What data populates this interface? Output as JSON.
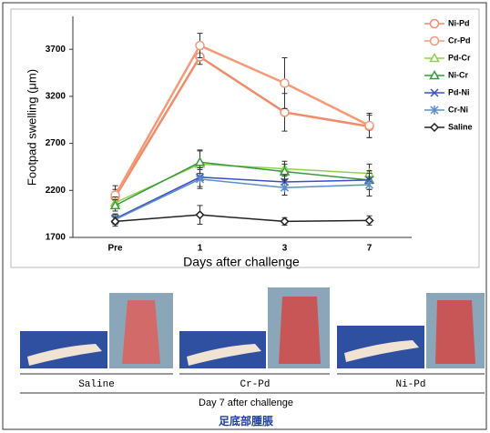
{
  "chart_data": {
    "type": "line",
    "ylabel": "Footpad swelling (μm)",
    "xlabel": "Days after challenge",
    "categories": [
      "Pre",
      "1",
      "3",
      "7"
    ],
    "ylim": [
      1700,
      4050
    ],
    "yticks": [
      1700,
      2200,
      2700,
      3200,
      3700
    ],
    "legend": "upper right",
    "series": [
      {
        "name": "Ni-Pd",
        "color": "#f08c6a",
        "marker": "circle",
        "values": [
          2130,
          3620,
          3030,
          2880
        ],
        "errors": [
          80,
          80,
          200,
          120
        ]
      },
      {
        "name": "Cr-Pd",
        "color": "#f59a78",
        "marker": "circle",
        "values": [
          2150,
          3740,
          3340,
          2890
        ],
        "errors": [
          100,
          130,
          270,
          130
        ]
      },
      {
        "name": "Pd-Cr",
        "color": "#8fd14f",
        "marker": "triangle",
        "values": [
          2070,
          2480,
          2430,
          2380
        ],
        "errors": [
          60,
          150,
          80,
          100
        ]
      },
      {
        "name": "Ni-Cr",
        "color": "#3a9a3a",
        "marker": "triangle",
        "values": [
          2040,
          2500,
          2400,
          2310
        ],
        "errors": [
          60,
          120,
          80,
          100
        ]
      },
      {
        "name": "Pd-Ni",
        "color": "#3c4fc2",
        "marker": "x",
        "values": [
          1900,
          2340,
          2290,
          2310
        ],
        "errors": [
          50,
          100,
          80,
          100
        ]
      },
      {
        "name": "Cr-Ni",
        "color": "#5b8fc7",
        "marker": "star",
        "values": [
          1890,
          2320,
          2230,
          2260
        ],
        "errors": [
          50,
          100,
          80,
          120
        ]
      },
      {
        "name": "Saline",
        "color": "#222222",
        "marker": "diamond",
        "values": [
          1870,
          1940,
          1870,
          1880
        ],
        "errors": [
          50,
          100,
          40,
          50
        ]
      }
    ]
  },
  "photos": {
    "labels": [
      "Saline",
      "Cr-Pd",
      "Ni-Pd"
    ],
    "caption": "Day 7 after challenge",
    "subcaption": "足底部腫脹"
  }
}
